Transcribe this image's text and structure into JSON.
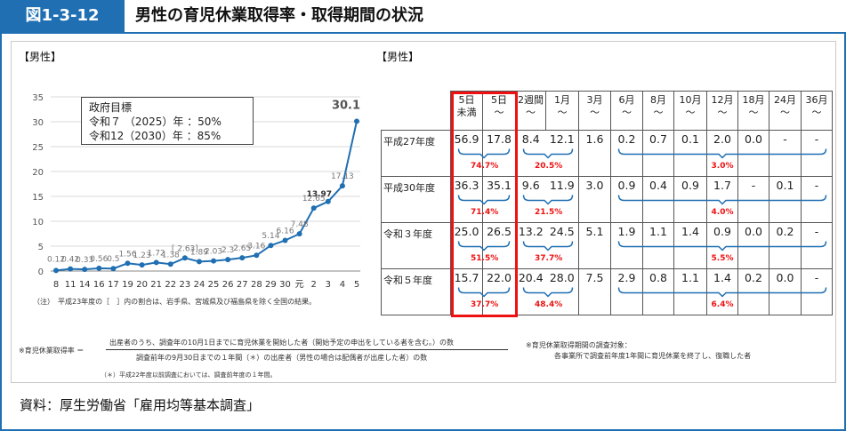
{
  "header": {
    "figure_number": "図1-3-12",
    "title": "男性の育児休業取得率・取得期間の状況"
  },
  "left": {
    "section_label": "【男性】",
    "goal_box": {
      "line1": "政府目標",
      "line2": "令和７ （2025）年 ：50%",
      "line3": "令和12（2030）年 ：85%"
    },
    "note": "（注）　平成23年度の［　］内の割合は、岩手県、宮城県及び福島県を除く全国の結果。"
  },
  "right": {
    "section_label": "【男性】",
    "columns": [
      "5日\n未満",
      "5日\n～",
      "2週間\n～",
      "1月\n～",
      "3月\n～",
      "6月\n～",
      "8月\n～",
      "10月\n～",
      "12月\n～",
      "18月\n～",
      "24月\n～",
      "36月\n～"
    ],
    "rows": [
      {
        "label": "平成27年度",
        "values": [
          "56.9",
          "17.8",
          "8.4",
          "12.1",
          "1.6",
          "0.2",
          "0.7",
          "0.1",
          "2.0",
          "0.0",
          "-",
          "-"
        ],
        "sums": [
          "74.7%",
          "20.5%",
          "3.0%"
        ]
      },
      {
        "label": "平成30年度",
        "values": [
          "36.3",
          "35.1",
          "9.6",
          "11.9",
          "3.0",
          "0.9",
          "0.4",
          "0.9",
          "1.7",
          "-",
          "0.1",
          "-"
        ],
        "sums": [
          "71.4%",
          "21.5%",
          "4.0%"
        ]
      },
      {
        "label": "令和３年度",
        "values": [
          "25.0",
          "26.5",
          "13.2",
          "24.5",
          "5.1",
          "1.9",
          "1.1",
          "1.4",
          "0.9",
          "0.0",
          "0.2",
          "-"
        ],
        "sums": [
          "51.5%",
          "37.7%",
          "5.5%"
        ]
      },
      {
        "label": "令和５年度",
        "values": [
          "15.7",
          "22.0",
          "20.4",
          "28.0",
          "7.5",
          "2.9",
          "0.8",
          "1.1",
          "1.4",
          "0.2",
          "0.0",
          "-"
        ],
        "sums": [
          "37.7%",
          "48.4%",
          "6.4%"
        ]
      }
    ]
  },
  "formula": {
    "label": "※育児休業取得率 ＝",
    "numerator": "出産者のうち、調査年の10月1日までに育児休業を開始した者（開始予定の申出をしている者を含む。）の数",
    "denominator": "調査前年の9月30日までの１年間（＊）の出産者（男性の場合は配偶者が出産した者）の数",
    "footnote": "（＊）平成22年度以前調査においては、調査前年度の１年間。",
    "survey_note1": "※育児休業取得期間の調査対象：",
    "survey_note2": "各事業所で調査前年度1年間に育児休業を終了し、復職した者"
  },
  "source": "資料：厚生労働省「雇用均等基本調査」",
  "chart_data": {
    "type": "line",
    "x": [
      "8",
      "11",
      "14",
      "16",
      "17",
      "19",
      "20",
      "21",
      "22",
      "23",
      "24",
      "25",
      "26",
      "27",
      "28",
      "29",
      "30",
      "元",
      "2",
      "3",
      "4",
      "5"
    ],
    "values": [
      0.12,
      0.42,
      0.33,
      0.56,
      0.5,
      1.56,
      1.23,
      1.72,
      1.38,
      2.63,
      1.89,
      2.03,
      2.3,
      2.65,
      3.16,
      5.14,
      6.16,
      7.48,
      12.65,
      13.97,
      17.13,
      30.1
    ],
    "data_labels": [
      "0.12",
      "0.42",
      "0.33",
      "0.56",
      "0.5",
      "1.56",
      "1.23",
      "1.72",
      "1.38",
      "[ 2.63]",
      "1.89",
      "2.03",
      "2.3",
      "2.65",
      "3.16",
      "5.14",
      "6.16",
      "7.48",
      "12.65",
      "13.97",
      "17.13",
      "30.1"
    ],
    "ylim": [
      0,
      35
    ],
    "yticks": [
      "0",
      "5",
      "10",
      "15",
      "20",
      "25",
      "30",
      "35"
    ],
    "color": "#1f6fb2",
    "grid": true
  }
}
